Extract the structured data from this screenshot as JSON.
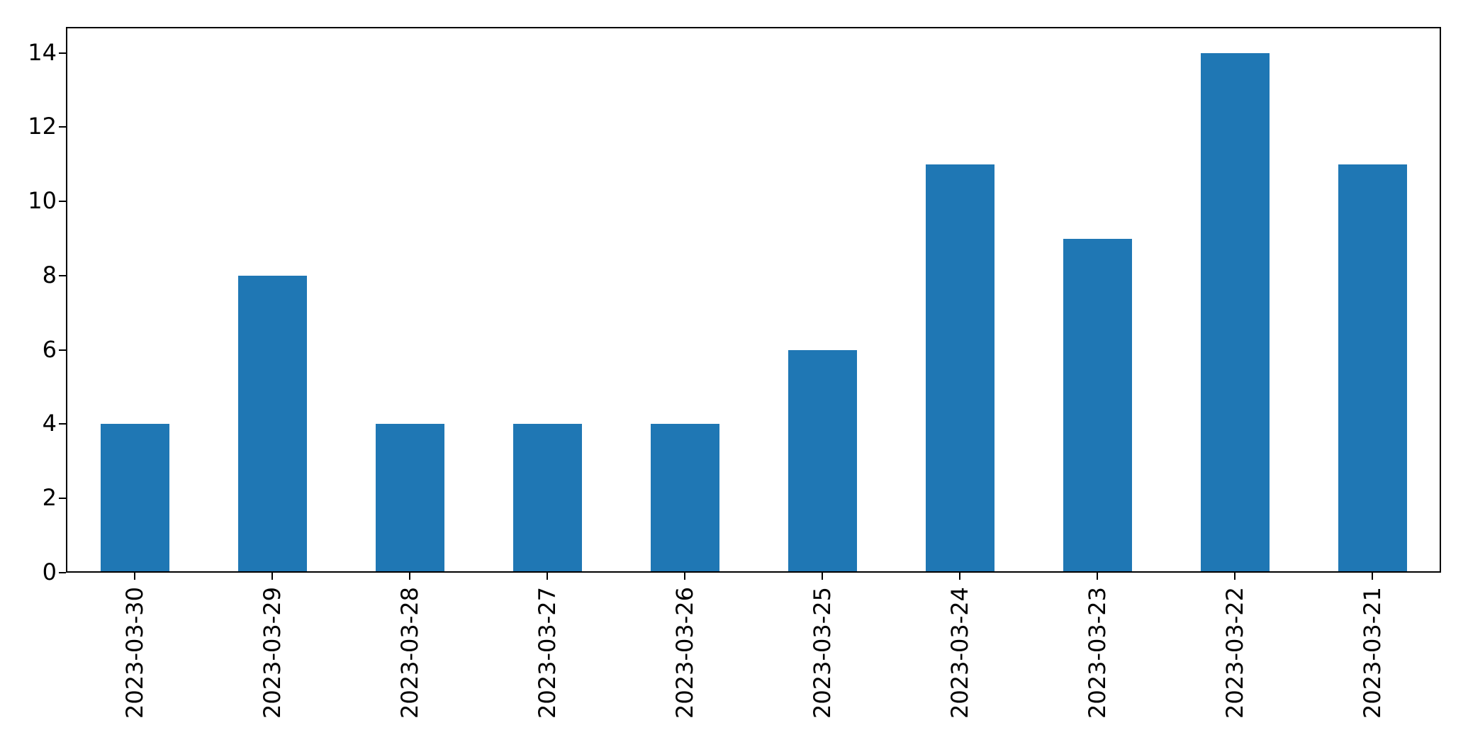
{
  "chart_data": {
    "type": "bar",
    "title": "",
    "xlabel": "",
    "ylabel": "",
    "categories": [
      "2023-03-30",
      "2023-03-29",
      "2023-03-28",
      "2023-03-27",
      "2023-03-26",
      "2023-03-25",
      "2023-03-24",
      "2023-03-23",
      "2023-03-22",
      "2023-03-21"
    ],
    "values": [
      4,
      8,
      4,
      4,
      4,
      6,
      11,
      9,
      14,
      11
    ],
    "yticks": [
      0,
      2,
      4,
      6,
      8,
      10,
      12,
      14
    ],
    "ylim": [
      0,
      14.7
    ],
    "x_tick_rotation": 90,
    "bar_color": "#1f77b4",
    "axis_color": "#000000",
    "background_color": "#ffffff",
    "grid": false,
    "legend": null,
    "bar_width_fraction": 0.5
  }
}
